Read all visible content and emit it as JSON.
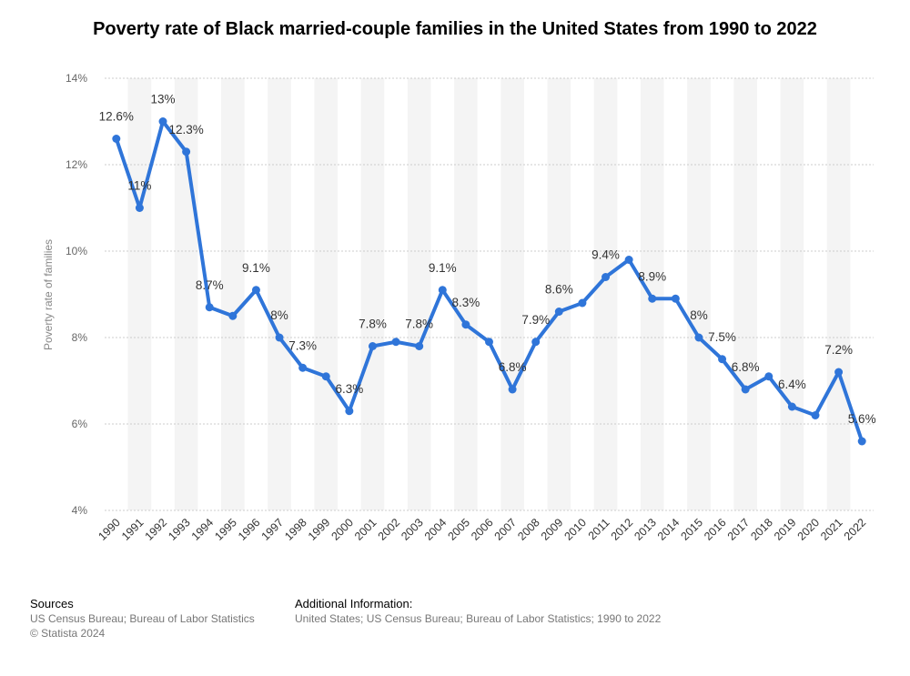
{
  "title": "Poverty rate of Black married-couple families in the United States from 1990 to 2022",
  "chart_data": {
    "type": "line",
    "title": "Poverty rate of Black married-couple families in the United States from 1990 to 2022",
    "xlabel": "",
    "ylabel": "Poverty rate of families",
    "ylim": [
      4,
      14
    ],
    "yticks": [
      4,
      6,
      8,
      10,
      12,
      14
    ],
    "ytick_labels": [
      "4%",
      "6%",
      "8%",
      "10%",
      "12%",
      "14%"
    ],
    "grid": true,
    "categories": [
      "1990",
      "1991",
      "1992",
      "1993",
      "1994",
      "1995",
      "1996",
      "1997",
      "1998",
      "1999",
      "2000",
      "2001",
      "2002",
      "2003",
      "2004",
      "2005",
      "2006",
      "2007",
      "2008",
      "2009",
      "2010",
      "2011",
      "2012",
      "2013",
      "2014",
      "2015",
      "2016",
      "2017",
      "2018",
      "2019",
      "2020",
      "2021",
      "2022"
    ],
    "series": [
      {
        "name": "Poverty rate",
        "color": "#2f75d9",
        "values": [
          12.6,
          11,
          13,
          12.3,
          8.7,
          8.5,
          9.1,
          8,
          7.3,
          7.1,
          6.3,
          7.8,
          7.9,
          7.8,
          9.1,
          8.3,
          7.9,
          6.8,
          7.9,
          8.6,
          8.8,
          9.4,
          9.8,
          8.9,
          8.9,
          8,
          7.5,
          6.8,
          7.1,
          6.4,
          6.2,
          7.2,
          5.6
        ],
        "labels": [
          "12.6%",
          "11%",
          "13%",
          "12.3%",
          "8.7%",
          null,
          "9.1%",
          "8%",
          "7.3%",
          null,
          "6.3%",
          "7.8%",
          null,
          "7.8%",
          "9.1%",
          "8.3%",
          null,
          "6.8%",
          "7.9%",
          "8.6%",
          null,
          "9.4%",
          null,
          "8.9%",
          null,
          "8%",
          "7.5%",
          "6.8%",
          null,
          "6.4%",
          null,
          "7.2%",
          "5.6%"
        ]
      }
    ]
  },
  "footer": {
    "sources_heading": "Sources",
    "sources_line1": "US Census Bureau; Bureau of Labor Statistics",
    "sources_line2": "© Statista 2024",
    "additional_heading": "Additional Information:",
    "additional_line1": "United States; US Census Bureau; Bureau of Labor Statistics; 1990 to 2022"
  }
}
